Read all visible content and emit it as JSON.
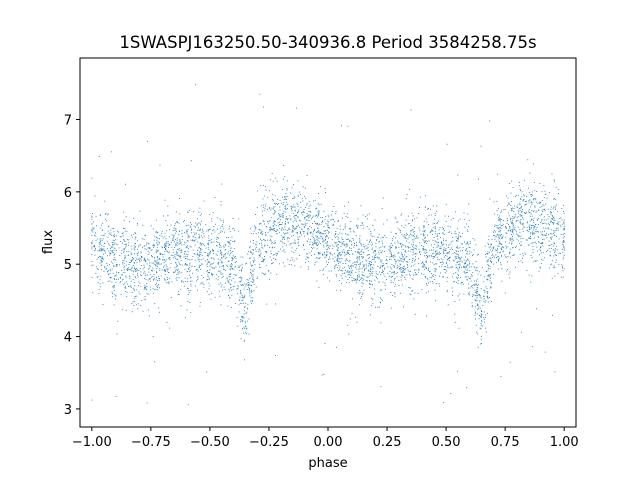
{
  "chart_data": {
    "type": "scatter",
    "title": "1SWASPJ163250.50-340936.8 Period 3584258.75s",
    "xlabel": "phase",
    "ylabel": "flux",
    "xlim": [
      -1.05,
      1.05
    ],
    "ylim": [
      2.75,
      7.85
    ],
    "xticks": [
      -1.0,
      -0.75,
      -0.5,
      -0.25,
      0.0,
      0.25,
      0.5,
      0.75,
      1.0
    ],
    "xtick_labels": [
      "−1.00",
      "−0.75",
      "−0.50",
      "−0.25",
      "0.00",
      "0.25",
      "0.50",
      "0.75",
      "1.00"
    ],
    "yticks": [
      3,
      4,
      5,
      6,
      7
    ],
    "ytick_labels": [
      "3",
      "4",
      "5",
      "6",
      "7"
    ],
    "grid": false,
    "marker_color": "#1f77b4",
    "series": [
      {
        "name": "",
        "description_points": "phase-folded light curve, mirrored at phase ±1",
        "baseline_profile": [
          [
            -1.0,
            5.3
          ],
          [
            -0.9,
            5.1
          ],
          [
            -0.8,
            4.95
          ],
          [
            -0.7,
            5.1
          ],
          [
            -0.6,
            5.2
          ],
          [
            -0.5,
            5.15
          ],
          [
            -0.4,
            5.0
          ],
          [
            -0.35,
            4.4
          ],
          [
            -0.3,
            5.3
          ],
          [
            -0.2,
            5.6
          ],
          [
            -0.1,
            5.55
          ],
          [
            0.0,
            5.3
          ],
          [
            0.1,
            5.1
          ],
          [
            0.2,
            4.95
          ],
          [
            0.3,
            5.1
          ],
          [
            0.4,
            5.2
          ],
          [
            0.5,
            5.15
          ],
          [
            0.6,
            5.0
          ],
          [
            0.65,
            4.4
          ],
          [
            0.7,
            5.3
          ],
          [
            0.8,
            5.6
          ],
          [
            0.9,
            5.55
          ],
          [
            1.0,
            5.3
          ]
        ]
      }
    ]
  }
}
